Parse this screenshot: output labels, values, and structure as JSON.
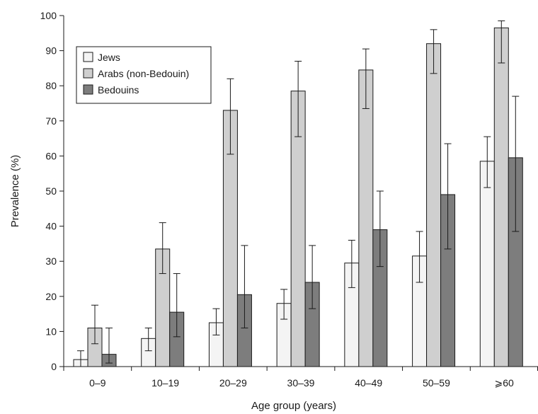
{
  "chart_data": {
    "type": "bar",
    "title": "",
    "xlabel": "Age group (years)",
    "ylabel": "Prevalence (%)",
    "ylim": [
      0,
      100
    ],
    "yticks": [
      0,
      10,
      20,
      30,
      40,
      50,
      60,
      70,
      80,
      90,
      100
    ],
    "grid": false,
    "legend_position": "top-left",
    "categories": [
      "0–9",
      "10–19",
      "20–29",
      "30–39",
      "40–49",
      "50–59",
      "⩾60"
    ],
    "series": [
      {
        "name": "Jews",
        "color": "#f4f4f4",
        "values": [
          2,
          8,
          12.5,
          18,
          29.5,
          31.5,
          58.5
        ],
        "error_low": [
          0,
          4.5,
          9,
          13.5,
          22.5,
          24,
          51
        ],
        "error_high": [
          4.5,
          11,
          16.5,
          22,
          36,
          38.5,
          65.5
        ]
      },
      {
        "name": "Arabs (non-Bedouin)",
        "color": "#cfcfcf",
        "values": [
          11,
          33.5,
          73,
          78.5,
          84.5,
          92,
          96.5
        ],
        "error_low": [
          6.5,
          26.5,
          60.5,
          65.5,
          73.5,
          83.5,
          86.5
        ],
        "error_high": [
          17.5,
          41,
          82,
          87,
          90.5,
          96,
          98.5
        ]
      },
      {
        "name": "Bedouins",
        "color": "#7d7d7d",
        "values": [
          3.5,
          15.5,
          20.5,
          24,
          39,
          49,
          59.5
        ],
        "error_low": [
          1,
          8.5,
          11,
          16.5,
          28.5,
          33.5,
          38.5
        ],
        "error_high": [
          11,
          26.5,
          34.5,
          34.5,
          50,
          63.5,
          77
        ]
      }
    ]
  }
}
